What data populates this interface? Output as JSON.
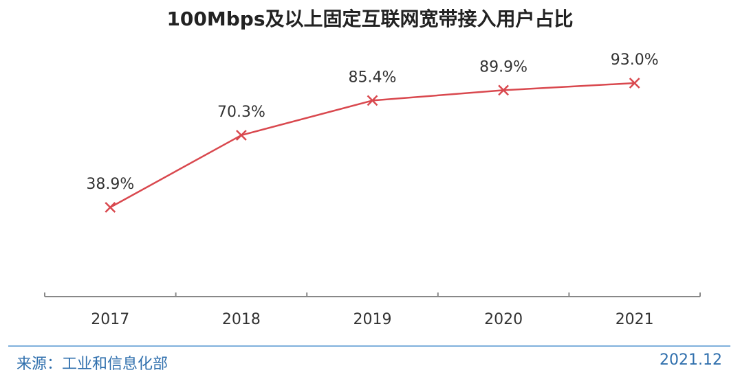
{
  "title": "100Mbps及以上固定互联网宽带接入用户占比",
  "source": "来源：工业和信息化部",
  "date": "2021.12",
  "colors": {
    "line": "#d9484e",
    "axis": "#888888",
    "source_text": "#2f6fad",
    "divider": "#7fb0dc"
  },
  "chart_data": {
    "type": "line",
    "title": "100Mbps及以上固定互联网宽带接入用户占比",
    "categories": [
      "2017",
      "2018",
      "2019",
      "2020",
      "2021"
    ],
    "series": [
      {
        "values": [
          38.9,
          70.3,
          85.4,
          89.9,
          93.0
        ],
        "labels": [
          "38.9%",
          "70.3%",
          "85.4%",
          "89.9%",
          "93.0%"
        ],
        "marker": "x"
      }
    ],
    "xlabel": "",
    "ylabel": "",
    "ylim": [
      0,
      100
    ],
    "grid": false,
    "legend": "none"
  }
}
